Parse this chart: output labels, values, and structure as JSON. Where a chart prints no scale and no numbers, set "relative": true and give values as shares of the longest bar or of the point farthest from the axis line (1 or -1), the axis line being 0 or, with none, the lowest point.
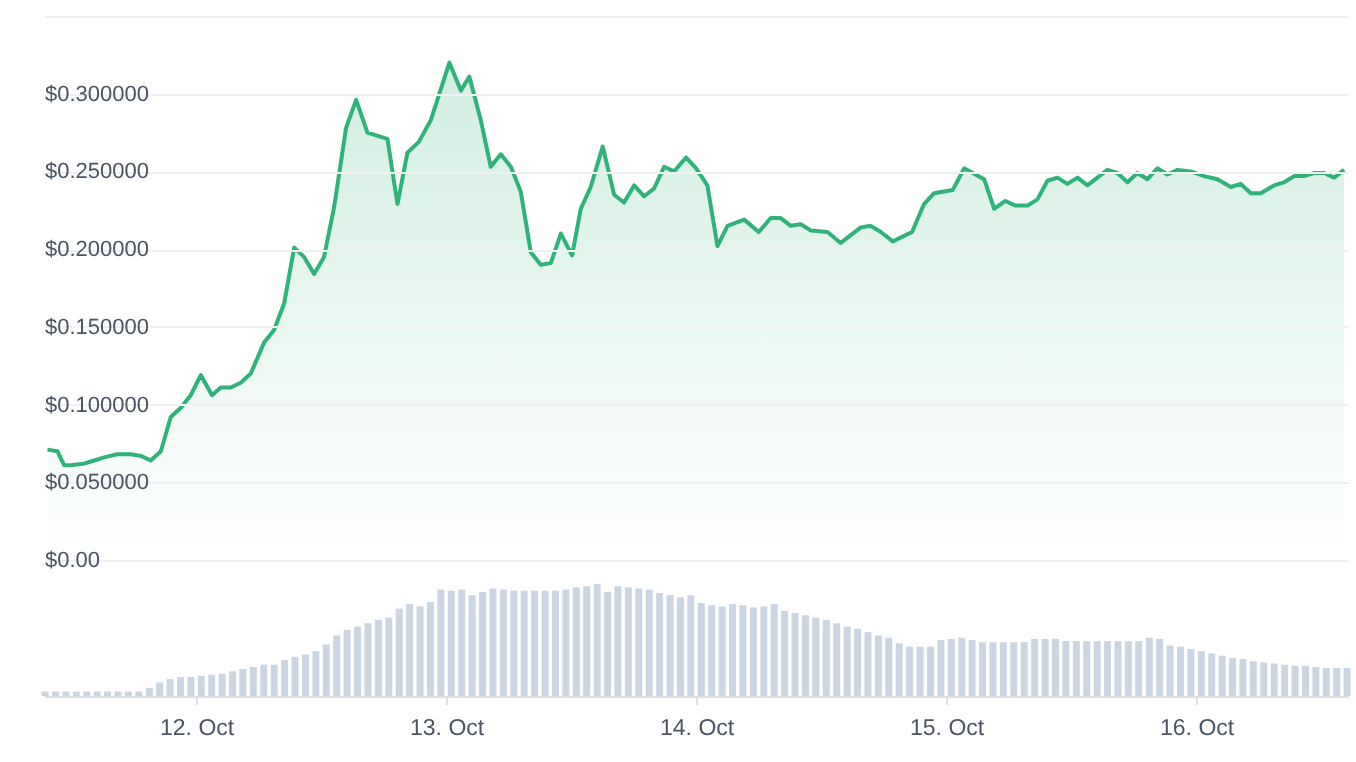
{
  "chart_data": [
    {
      "type": "area",
      "x": [
        "--10-11T09:44",
        "--10-11T10:41",
        "--10-11T11:20",
        "--10-11T11:58",
        "--10-11T13:15",
        "--10-11T14:13",
        "--10-11T15:10",
        "--10-11T16:27",
        "--10-11T17:44",
        "--10-11T18:41",
        "--10-11T19:39",
        "--10-11T20:37",
        "--10-11T21:34",
        "--10-11T22:32",
        "--10-11T23:29",
        "--10-12T00:27",
        "--10-12T01:32",
        "--10-12T02:22",
        "--10-12T03:20",
        "--10-12T04:17",
        "--10-12T05:15",
        "--10-12T06:32",
        "--10-12T07:29",
        "--10-12T08:27",
        "--10-12T09:25",
        "--10-12T10:22",
        "--10-12T11:20",
        "--10-12T12:17",
        "--10-12T13:15",
        "--10-12T14:24",
        "--10-12T15:22",
        "--10-12T16:27",
        "--10-12T18:22",
        "--10-12T19:20",
        "--10-12T20:17",
        "--10-12T21:23",
        "--10-12T22:32",
        "--10-13T00:19",
        "--10-13T01:25",
        "--10-13T02:14",
        "--10-13T03:20",
        "--10-13T04:17",
        "--10-13T05:15",
        "--10-13T06:13",
        "--10-13T07:10",
        "--10-13T08:08",
        "--10-13T09:05",
        "--10-13T10:03",
        "--10-13T11:01",
        "--10-13T12:06",
        "--10-13T12:56",
        "--10-13T13:53",
        "--10-13T15:02",
        "--10-13T16:08",
        "--10-13T17:05",
        "--10-13T18:03",
        "--10-13T19:01",
        "--10-13T19:58",
        "--10-13T20:56",
        "--10-13T21:53",
        "--10-13T23:02",
        "--10-14T00:00",
        "--10-14T01:05",
        "--10-14T02:03",
        "--10-14T03:01",
        "--10-14T04:37",
        "--10-14T06:01",
        "--10-14T07:10",
        "--10-14T08:08",
        "--10-14T09:05",
        "--10-14T10:03",
        "--10-14T11:01",
        "--10-14T12:37",
        "--10-14T13:53",
        "--10-14T15:49",
        "--10-14T16:46",
        "--10-14T17:44",
        "--10-14T18:53",
        "--10-14T20:44",
        "--10-14T21:53",
        "--10-14T22:51",
        "--10-15T00:38",
        "--10-15T01:44",
        "--10-15T03:39",
        "--10-15T04:37",
        "--10-15T05:42",
        "--10-15T06:40",
        "--10-15T07:49",
        "--10-15T08:46",
        "--10-15T09:44",
        "--10-15T10:41",
        "--10-15T11:39",
        "--10-15T12:37",
        "--10-15T13:34",
        "--10-15T15:29",
        "--10-15T16:27",
        "--10-15T17:25",
        "--10-15T18:22",
        "--10-15T19:20",
        "--10-15T20:17",
        "--10-15T21:15",
        "--10-15T22:13",
        "--10-15T23:29",
        "--10-16T00:46",
        "--10-16T02:03",
        "--10-16T03:20",
        "--10-16T04:17",
        "--10-16T05:15",
        "--10-16T06:13",
        "--10-16T07:29",
        "--10-16T08:27",
        "--10-16T09:25",
        "--10-16T10:22",
        "--10-16T11:20",
        "--10-16T12:17",
        "--10-16T13:15",
        "--10-16T14:13"
      ],
      "series": [
        {
          "color": "#2fb37a",
          "values": [
            0.071,
            0.07,
            0.061,
            0.061,
            0.062,
            0.064,
            0.066,
            0.068,
            0.068,
            0.067,
            0.064,
            0.07,
            0.092,
            0.098,
            0.106,
            0.119,
            0.106,
            0.111,
            0.111,
            0.114,
            0.12,
            0.14,
            0.148,
            0.165,
            0.201,
            0.195,
            0.184,
            0.195,
            0.227,
            0.278,
            0.296,
            0.275,
            0.271,
            0.229,
            0.262,
            0.269,
            0.283,
            0.32,
            0.302,
            0.311,
            0.283,
            0.253,
            0.261,
            0.253,
            0.237,
            0.198,
            0.19,
            0.191,
            0.21,
            0.196,
            0.226,
            0.24,
            0.266,
            0.235,
            0.23,
            0.241,
            0.234,
            0.239,
            0.253,
            0.25,
            0.259,
            0.252,
            0.241,
            0.202,
            0.215,
            0.219,
            0.211,
            0.22,
            0.22,
            0.215,
            0.216,
            0.212,
            0.211,
            0.204,
            0.214,
            0.215,
            0.211,
            0.205,
            0.211,
            0.229,
            0.236,
            0.238,
            0.252,
            0.245,
            0.226,
            0.231,
            0.228,
            0.228,
            0.232,
            0.244,
            0.246,
            0.242,
            0.246,
            0.241,
            0.251,
            0.249,
            0.243,
            0.249,
            0.245,
            0.252,
            0.248,
            0.251,
            0.25,
            0.247,
            0.245,
            0.24,
            0.242,
            0.236,
            0.236,
            0.241,
            0.243,
            0.247,
            0.247,
            0.249,
            0.249,
            0.246,
            0.251
          ]
        }
      ],
      "xlim": [
        "--10-11T09:24",
        "--10-16T14:35"
      ],
      "ylim": [
        0,
        0.35
      ],
      "yticks": [
        {
          "value": 0,
          "label": "$0.00"
        },
        {
          "value": 0.05,
          "label": "$0.050000"
        },
        {
          "value": 0.1,
          "label": "$0.100000"
        },
        {
          "value": 0.15,
          "label": "$0.150000"
        },
        {
          "value": 0.2,
          "label": "$0.200000"
        },
        {
          "value": 0.25,
          "label": "$0.250000"
        },
        {
          "value": 0.3,
          "label": "$0.300000"
        },
        {
          "value": 0.35,
          "label": null
        }
      ],
      "grid": "y",
      "tick_labels": "y"
    },
    {
      "type": "bar",
      "relative": true,
      "x": [
        "--10-11T09:30",
        "--10-11T10:30",
        "--10-11T11:30",
        "--10-11T12:30",
        "--10-11T13:30",
        "--10-11T14:30",
        "--10-11T15:30",
        "--10-11T16:30",
        "--10-11T17:30",
        "--10-11T18:30",
        "--10-11T19:30",
        "--10-11T20:30",
        "--10-11T21:30",
        "--10-11T22:30",
        "--10-11T23:30",
        "--10-12T00:30",
        "--10-12T01:30",
        "--10-12T02:30",
        "--10-12T03:30",
        "--10-12T04:30",
        "--10-12T05:30",
        "--10-12T06:30",
        "--10-12T07:30",
        "--10-12T08:30",
        "--10-12T09:30",
        "--10-12T10:30",
        "--10-12T11:30",
        "--10-12T12:30",
        "--10-12T13:30",
        "--10-12T14:30",
        "--10-12T15:30",
        "--10-12T16:30",
        "--10-12T17:30",
        "--10-12T18:30",
        "--10-12T19:30",
        "--10-12T20:30",
        "--10-12T21:30",
        "--10-12T22:30",
        "--10-12T23:30",
        "--10-13T00:30",
        "--10-13T01:30",
        "--10-13T02:30",
        "--10-13T03:30",
        "--10-13T04:30",
        "--10-13T05:30",
        "--10-13T06:30",
        "--10-13T07:30",
        "--10-13T08:30",
        "--10-13T09:30",
        "--10-13T10:30",
        "--10-13T11:30",
        "--10-13T12:30",
        "--10-13T13:30",
        "--10-13T14:30",
        "--10-13T15:30",
        "--10-13T16:30",
        "--10-13T17:30",
        "--10-13T18:30",
        "--10-13T19:30",
        "--10-13T20:30",
        "--10-13T21:30",
        "--10-13T22:30",
        "--10-13T23:30",
        "--10-14T00:30",
        "--10-14T01:30",
        "--10-14T02:30",
        "--10-14T03:30",
        "--10-14T04:30",
        "--10-14T05:30",
        "--10-14T06:30",
        "--10-14T07:30",
        "--10-14T08:30",
        "--10-14T09:30",
        "--10-14T10:30",
        "--10-14T11:30",
        "--10-14T12:30",
        "--10-14T13:30",
        "--10-14T14:30",
        "--10-14T15:30",
        "--10-14T16:30",
        "--10-14T17:30",
        "--10-14T18:30",
        "--10-14T19:30",
        "--10-14T20:30",
        "--10-14T21:30",
        "--10-14T22:30",
        "--10-14T23:30",
        "--10-15T00:30",
        "--10-15T01:30",
        "--10-15T02:30",
        "--10-15T03:30",
        "--10-15T04:30",
        "--10-15T05:30",
        "--10-15T06:30",
        "--10-15T07:30",
        "--10-15T08:30",
        "--10-15T09:30",
        "--10-15T10:30",
        "--10-15T11:30",
        "--10-15T12:30",
        "--10-15T13:30",
        "--10-15T14:30",
        "--10-15T15:30",
        "--10-15T16:30",
        "--10-15T17:30",
        "--10-15T18:30",
        "--10-15T19:30",
        "--10-15T20:30",
        "--10-15T21:30",
        "--10-15T22:30",
        "--10-15T23:30",
        "--10-16T00:30",
        "--10-16T01:30",
        "--10-16T02:30",
        "--10-16T03:30",
        "--10-16T04:30",
        "--10-16T05:30",
        "--10-16T06:30",
        "--10-16T07:30",
        "--10-16T08:30",
        "--10-16T09:30",
        "--10-16T10:30",
        "--10-16T11:30",
        "--10-16T12:30",
        "--10-16T13:30",
        "--10-16T14:30"
      ],
      "series": [
        {
          "color": "#ccd5e2",
          "values": [
            0.04,
            0.04,
            0.04,
            0.04,
            0.04,
            0.04,
            0.04,
            0.04,
            0.04,
            0.04,
            0.07,
            0.12,
            0.15,
            0.17,
            0.17,
            0.18,
            0.19,
            0.2,
            0.22,
            0.24,
            0.26,
            0.28,
            0.28,
            0.32,
            0.35,
            0.37,
            0.4,
            0.46,
            0.54,
            0.59,
            0.62,
            0.65,
            0.68,
            0.7,
            0.78,
            0.82,
            0.8,
            0.84,
            0.95,
            0.94,
            0.95,
            0.9,
            0.93,
            0.96,
            0.95,
            0.94,
            0.94,
            0.94,
            0.94,
            0.94,
            0.95,
            0.97,
            0.98,
            1,
            0.93,
            0.98,
            0.97,
            0.96,
            0.95,
            0.92,
            0.9,
            0.88,
            0.9,
            0.83,
            0.81,
            0.8,
            0.82,
            0.81,
            0.79,
            0.8,
            0.82,
            0.76,
            0.74,
            0.72,
            0.7,
            0.68,
            0.65,
            0.62,
            0.6,
            0.57,
            0.54,
            0.52,
            0.47,
            0.44,
            0.44,
            0.44,
            0.5,
            0.51,
            0.52,
            0.5,
            0.48,
            0.48,
            0.48,
            0.48,
            0.48,
            0.51,
            0.51,
            0.51,
            0.49,
            0.49,
            0.49,
            0.49,
            0.49,
            0.49,
            0.49,
            0.49,
            0.52,
            0.51,
            0.45,
            0.44,
            0.42,
            0.4,
            0.38,
            0.36,
            0.34,
            0.33,
            0.31,
            0.3,
            0.29,
            0.28,
            0.27,
            0.27,
            0.26,
            0.25,
            0.25,
            0.25
          ]
        }
      ],
      "xlim": [
        "--10-11T09:24",
        "--10-16T14:35"
      ],
      "xticks": [
        {
          "value": "--10-12",
          "label": "12. Oct"
        },
        {
          "value": "--10-13",
          "label": "13. Oct"
        },
        {
          "value": "--10-14",
          "label": "14. Oct"
        },
        {
          "value": "--10-15",
          "label": "15. Oct"
        },
        {
          "value": "--10-16",
          "label": "16. Oct"
        }
      ],
      "tick_labels": "x"
    }
  ]
}
